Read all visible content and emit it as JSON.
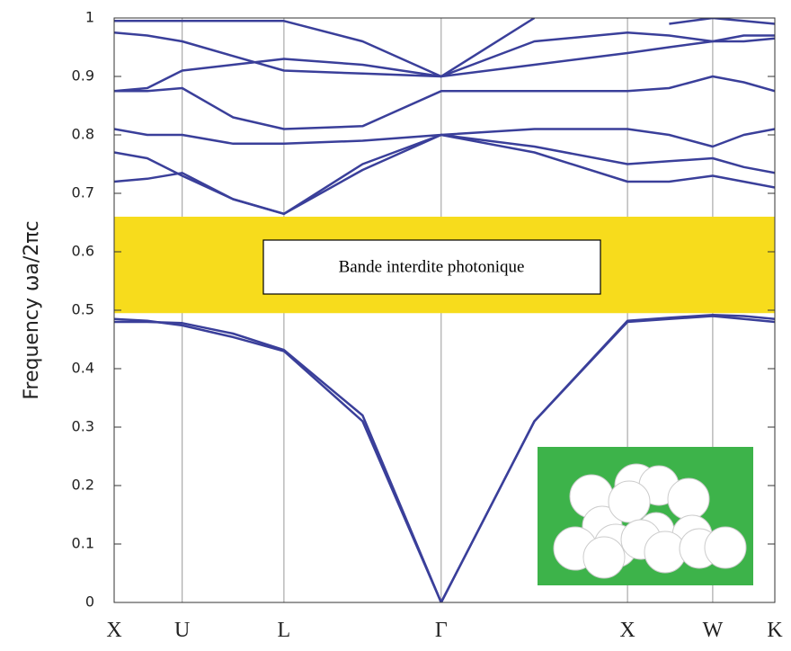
{
  "chart_data": {
    "type": "line",
    "y_label": "Frequency  ωa/2πc",
    "x": [
      0,
      0.05,
      0.103,
      0.18,
      0.257,
      0.376,
      0.495,
      0.636,
      0.777,
      0.84,
      0.906,
      0.953,
      1.0
    ],
    "xlim": [
      0,
      1.0
    ],
    "xticks": [
      {
        "value": 0,
        "label": "X"
      },
      {
        "value": 0.103,
        "label": "U"
      },
      {
        "value": 0.257,
        "label": "L"
      },
      {
        "value": 0.495,
        "label": "Γ"
      },
      {
        "value": 0.777,
        "label": "X"
      },
      {
        "value": 0.906,
        "label": "W"
      },
      {
        "value": 1.0,
        "label": "K"
      }
    ],
    "ylim": [
      0,
      1
    ],
    "yticks": [
      0,
      0.1,
      0.2,
      0.3,
      0.4,
      0.5,
      0.6,
      0.7,
      0.8,
      0.9,
      1
    ],
    "grid": true,
    "band_gap": {
      "range": [
        0.495,
        0.66
      ],
      "label": "Bande interdite photonique",
      "color": "#f7dc1c"
    },
    "series": [
      {
        "color": "#3a3f9a",
        "values": [
          0.485,
          0.482,
          0.474,
          0.454,
          0.43,
          0.31,
          0,
          0.31,
          0.48,
          0.485,
          0.49,
          0.485,
          0.48
        ]
      },
      {
        "color": "#3a3f9a",
        "values": [
          0.48,
          0.48,
          0.478,
          0.46,
          0.432,
          0.32,
          0,
          0.31,
          0.482,
          0.487,
          0.492,
          0.49,
          0.485
        ]
      },
      {
        "color": "#3a3f9a",
        "values": [
          0.77,
          0.76,
          0.73,
          0.69,
          0.665,
          0.74,
          0.8,
          0.77,
          0.72,
          0.72,
          0.73,
          0.72,
          0.71
        ]
      },
      {
        "color": "#3a3f9a",
        "values": [
          0.72,
          0.725,
          0.735,
          0.69,
          0.665,
          0.75,
          0.8,
          0.78,
          0.75,
          0.755,
          0.76,
          0.745,
          0.735
        ]
      },
      {
        "color": "#3a3f9a",
        "values": [
          0.81,
          0.8,
          0.8,
          0.785,
          0.785,
          0.79,
          0.8,
          0.81,
          0.81,
          0.8,
          0.78,
          0.8,
          0.81
        ]
      },
      {
        "color": "#3a3f9a",
        "values": [
          0.875,
          0.875,
          0.88,
          0.83,
          0.81,
          0.815,
          0.875,
          0.875,
          0.875,
          0.88,
          0.9,
          0.89,
          0.875
        ]
      },
      {
        "color": "#3a3f9a",
        "values": [
          0.875,
          0.88,
          0.91,
          0.92,
          0.93,
          0.92,
          0.9,
          0.92,
          0.94,
          0.95,
          0.96,
          0.96,
          0.965
        ]
      },
      {
        "color": "#3a3f9a",
        "values": [
          0.975,
          0.97,
          0.96,
          0.935,
          0.91,
          0.905,
          0.9,
          0.96,
          0.975,
          0.97,
          0.96,
          0.97,
          0.97
        ]
      },
      {
        "color": "#3a3f9a",
        "values": [
          0.995,
          0.995,
          0.995,
          0.995,
          0.995,
          0.96,
          0.9,
          1.0,
          null,
          0.99,
          1.0,
          0.995,
          0.99
        ]
      }
    ]
  }
}
